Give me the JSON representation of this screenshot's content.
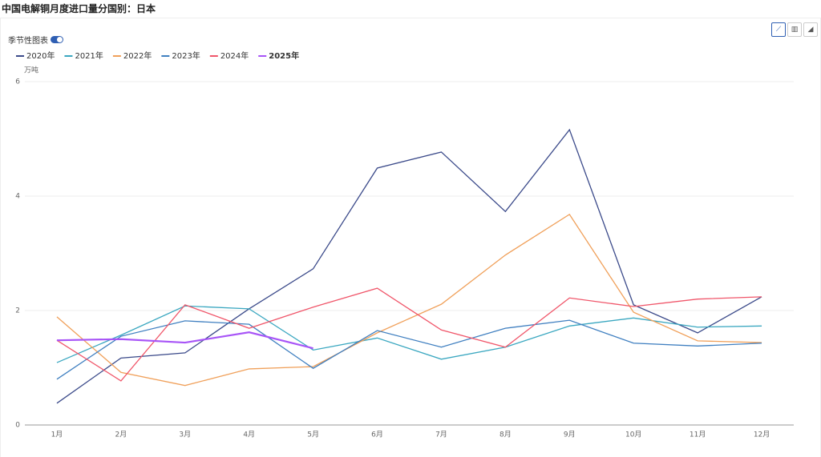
{
  "chart_data": {
    "type": "line",
    "title": "中国电解铜月度进口量分国别：日本",
    "toggle_label": "季节性图表",
    "y_axis_label": "万吨",
    "categories": [
      "1月",
      "2月",
      "3月",
      "4月",
      "5月",
      "6月",
      "7月",
      "8月",
      "9月",
      "10月",
      "11月",
      "12月"
    ],
    "series": [
      {
        "name": "2020年",
        "color": "#3b4a8a",
        "values": [
          0.38,
          1.17,
          1.26,
          2.03,
          2.73,
          4.49,
          4.77,
          3.73,
          5.16,
          2.1,
          1.61,
          2.24
        ]
      },
      {
        "name": "2021年",
        "color": "#3aa7c0",
        "values": [
          1.09,
          1.57,
          2.08,
          2.03,
          1.31,
          1.52,
          1.15,
          1.36,
          1.73,
          1.87,
          1.71,
          1.73
        ]
      },
      {
        "name": "2022年",
        "color": "#f0a05a",
        "values": [
          1.89,
          0.92,
          0.69,
          0.98,
          1.02,
          1.61,
          2.11,
          2.97,
          3.68,
          1.97,
          1.47,
          1.44
        ]
      },
      {
        "name": "2023年",
        "color": "#3f7fc0",
        "values": [
          0.8,
          1.55,
          1.82,
          1.76,
          0.99,
          1.65,
          1.36,
          1.69,
          1.83,
          1.43,
          1.38,
          1.43
        ]
      },
      {
        "name": "2024年",
        "color": "#f0566a",
        "values": [
          1.48,
          0.77,
          2.1,
          1.69,
          2.06,
          2.39,
          1.66,
          1.36,
          2.22,
          2.07,
          2.2,
          2.24
        ]
      },
      {
        "name": "2025年",
        "color": "#a855f7",
        "values": [
          1.48,
          1.5,
          1.44,
          1.62,
          1.34,
          null,
          null,
          null,
          null,
          null,
          null,
          null
        ]
      }
    ],
    "ylim": [
      0,
      6
    ],
    "yticks": [
      0,
      2,
      4,
      6
    ],
    "grid": true
  }
}
